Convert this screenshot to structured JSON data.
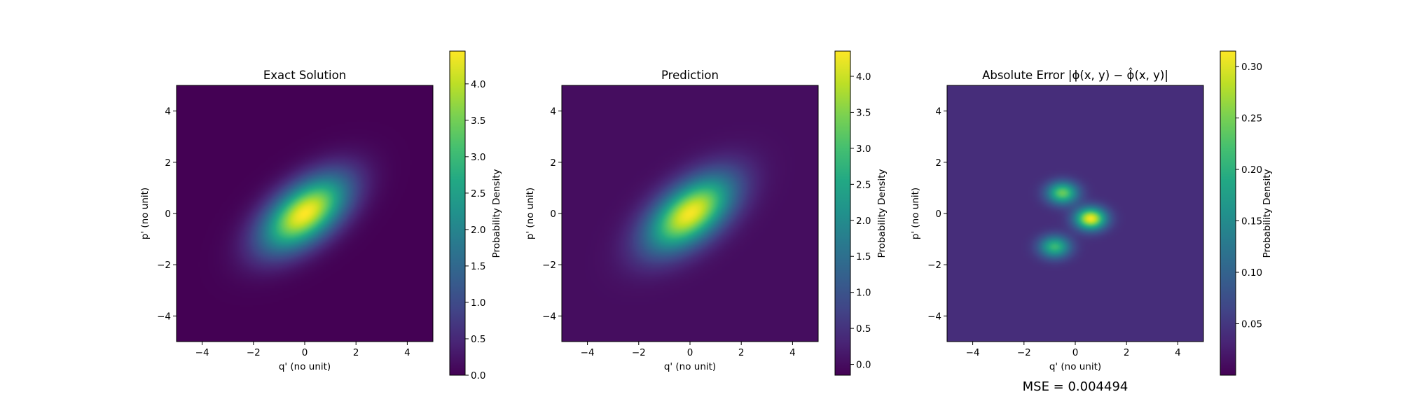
{
  "chart_data": [
    {
      "type": "heatmap",
      "title": "Exact Solution",
      "xlabel": "q' (no unit)",
      "ylabel": "p' (no unit)",
      "xlim": [
        -5,
        5
      ],
      "ylim": [
        -5,
        5
      ],
      "xticks": [
        "−4",
        "−2",
        "0",
        "2",
        "4"
      ],
      "xtick_values": [
        -4,
        -2,
        0,
        2,
        4
      ],
      "yticks": [
        "−4",
        "−2",
        "0",
        "2",
        "4"
      ],
      "ytick_values": [
        -4,
        -2,
        0,
        2,
        4
      ],
      "colormap": "viridis",
      "colorbar": {
        "label": "Probability Density",
        "range": [
          0.0,
          4.45
        ],
        "ticks": [
          "0.0",
          "0.5",
          "1.0",
          "1.5",
          "2.0",
          "2.5",
          "3.0",
          "3.5",
          "4.0"
        ],
        "tick_values": [
          0.0,
          0.5,
          1.0,
          1.5,
          2.0,
          2.5,
          3.0,
          3.5,
          4.0
        ]
      },
      "field": {
        "kind": "gaussian-ellipse",
        "peak": 4.45,
        "center": [
          0,
          0
        ],
        "orientation_deg": 38,
        "major_sigma": 1.35,
        "minor_sigma": 0.72
      }
    },
    {
      "type": "heatmap",
      "title": "Prediction",
      "xlabel": "q' (no unit)",
      "ylabel": "p' (no unit)",
      "xlim": [
        -5,
        5
      ],
      "ylim": [
        -5,
        5
      ],
      "xticks": [
        "−4",
        "−2",
        "0",
        "2",
        "4"
      ],
      "xtick_values": [
        -4,
        -2,
        0,
        2,
        4
      ],
      "yticks": [
        "−4",
        "−2",
        "0",
        "2",
        "4"
      ],
      "ytick_values": [
        -4,
        -2,
        0,
        2,
        4
      ],
      "colormap": "viridis",
      "colorbar": {
        "label": "Probability Density",
        "range": [
          -0.15,
          4.35
        ],
        "ticks": [
          "0.0",
          "0.5",
          "1.0",
          "1.5",
          "2.0",
          "2.5",
          "3.0",
          "3.5",
          "4.0"
        ],
        "tick_values": [
          0.0,
          0.5,
          1.0,
          1.5,
          2.0,
          2.5,
          3.0,
          3.5,
          4.0
        ]
      },
      "field": {
        "kind": "gaussian-ellipse",
        "peak": 4.3,
        "center": [
          0,
          0
        ],
        "orientation_deg": 38,
        "major_sigma": 1.35,
        "minor_sigma": 0.72
      }
    },
    {
      "type": "heatmap",
      "title": "Absolute Error |ϕ(x, y) − ϕ̂(x, y)|",
      "xlabel": "q' (no unit)",
      "ylabel": "p' (no unit)",
      "xlim": [
        -5,
        5
      ],
      "ylim": [
        -5,
        5
      ],
      "xticks": [
        "−4",
        "−2",
        "0",
        "2",
        "4"
      ],
      "xtick_values": [
        -4,
        -2,
        0,
        2,
        4
      ],
      "yticks": [
        "−4",
        "−2",
        "0",
        "2",
        "4"
      ],
      "ytick_values": [
        -4,
        -2,
        0,
        2,
        4
      ],
      "colormap": "viridis",
      "colorbar": {
        "label": "Probability Density",
        "range": [
          0.0,
          0.315
        ],
        "ticks": [
          "0.05",
          "0.10",
          "0.15",
          "0.20",
          "0.25",
          "0.30"
        ],
        "tick_values": [
          0.05,
          0.1,
          0.15,
          0.2,
          0.25,
          0.3
        ]
      },
      "field": {
        "kind": "error-blobs",
        "background": 0.04,
        "blobs": [
          {
            "x": 0.6,
            "y": -0.2,
            "value": 0.31
          },
          {
            "x": -0.5,
            "y": 0.8,
            "value": 0.24
          },
          {
            "x": -0.8,
            "y": -1.3,
            "value": 0.21
          }
        ]
      },
      "annotation": "MSE = 0.004494"
    }
  ]
}
